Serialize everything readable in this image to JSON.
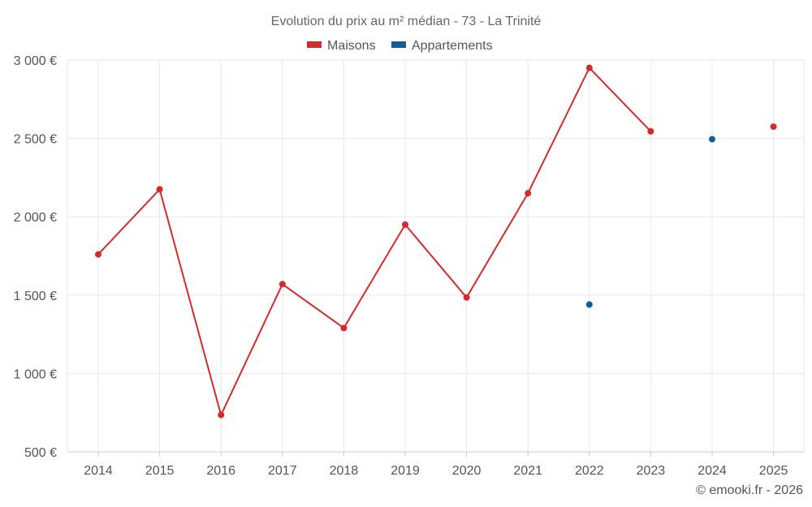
{
  "chart_data": {
    "type": "line",
    "title": "Evolution du prix au m² médian - 73 - La Trinité",
    "categories": [
      "2014",
      "2015",
      "2016",
      "2017",
      "2018",
      "2019",
      "2020",
      "2021",
      "2022",
      "2023",
      "2024",
      "2025"
    ],
    "series": [
      {
        "name": "Maisons",
        "color": "#d42a2a",
        "values": [
          1760,
          2175,
          735,
          1570,
          1290,
          1950,
          1485,
          2150,
          2950,
          2545,
          null,
          2575
        ]
      },
      {
        "name": "Appartements",
        "color": "#0e5f96",
        "values": [
          null,
          null,
          null,
          null,
          null,
          null,
          null,
          null,
          1440,
          null,
          2495,
          null
        ]
      }
    ],
    "y_ticks": [
      {
        "value": 500,
        "label": "500 €"
      },
      {
        "value": 1000,
        "label": "1 000 €"
      },
      {
        "value": 1500,
        "label": "1 500 €"
      },
      {
        "value": 2000,
        "label": "2 000 €"
      },
      {
        "value": 2500,
        "label": "2 500 €"
      },
      {
        "value": 3000,
        "label": "3 000 €"
      }
    ],
    "ylim": [
      500,
      3000
    ],
    "xlabel": "",
    "ylabel": "",
    "grid": true,
    "legend_position": "top-center"
  },
  "credit": "© emooki.fr - 2026"
}
